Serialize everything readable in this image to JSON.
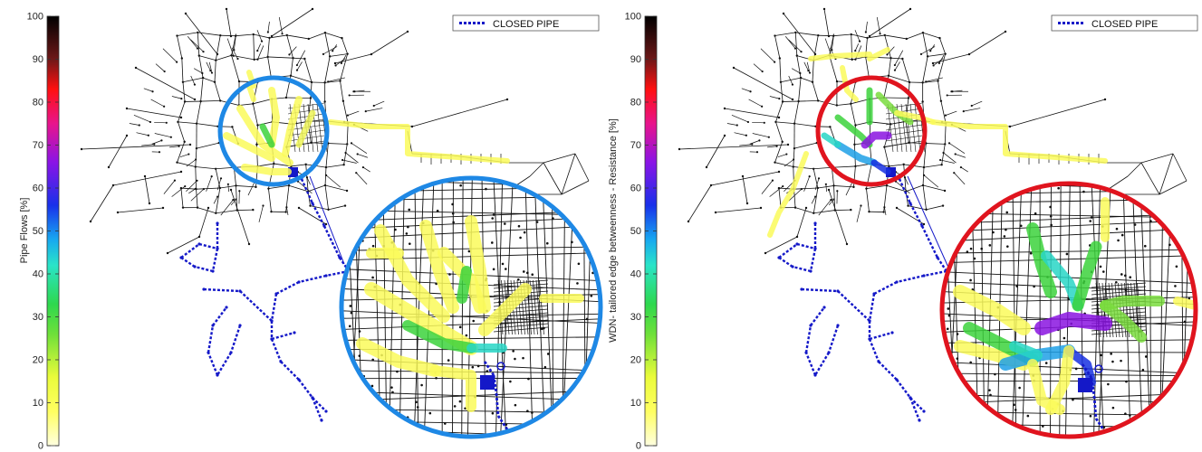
{
  "panels": [
    {
      "colorbar_label": "Pipe Flows [%]",
      "legend_label": "CLOSED PIPE",
      "ticks": [
        0,
        10,
        20,
        30,
        40,
        50,
        60,
        70,
        80,
        90,
        100
      ],
      "highlight_color": "#1E88E5"
    },
    {
      "colorbar_label": "WDN- tailored edge  betweenness - Resistance [%]",
      "legend_label": "CLOSED PIPE",
      "ticks": [
        0,
        10,
        20,
        30,
        40,
        50,
        60,
        70,
        80,
        90,
        100
      ],
      "highlight_color": "#E0141E"
    }
  ],
  "colors": {
    "closed_pipe": "#1418C8",
    "pipe": "#111111",
    "colormap": [
      "#FFFFE0",
      "#FFFF50",
      "#C8F03C",
      "#3CDC3C",
      "#28E6C8",
      "#14A0F0",
      "#1414E6",
      "#9614E6",
      "#E61482",
      "#FF0A0A",
      "#6E1414",
      "#000000"
    ]
  }
}
